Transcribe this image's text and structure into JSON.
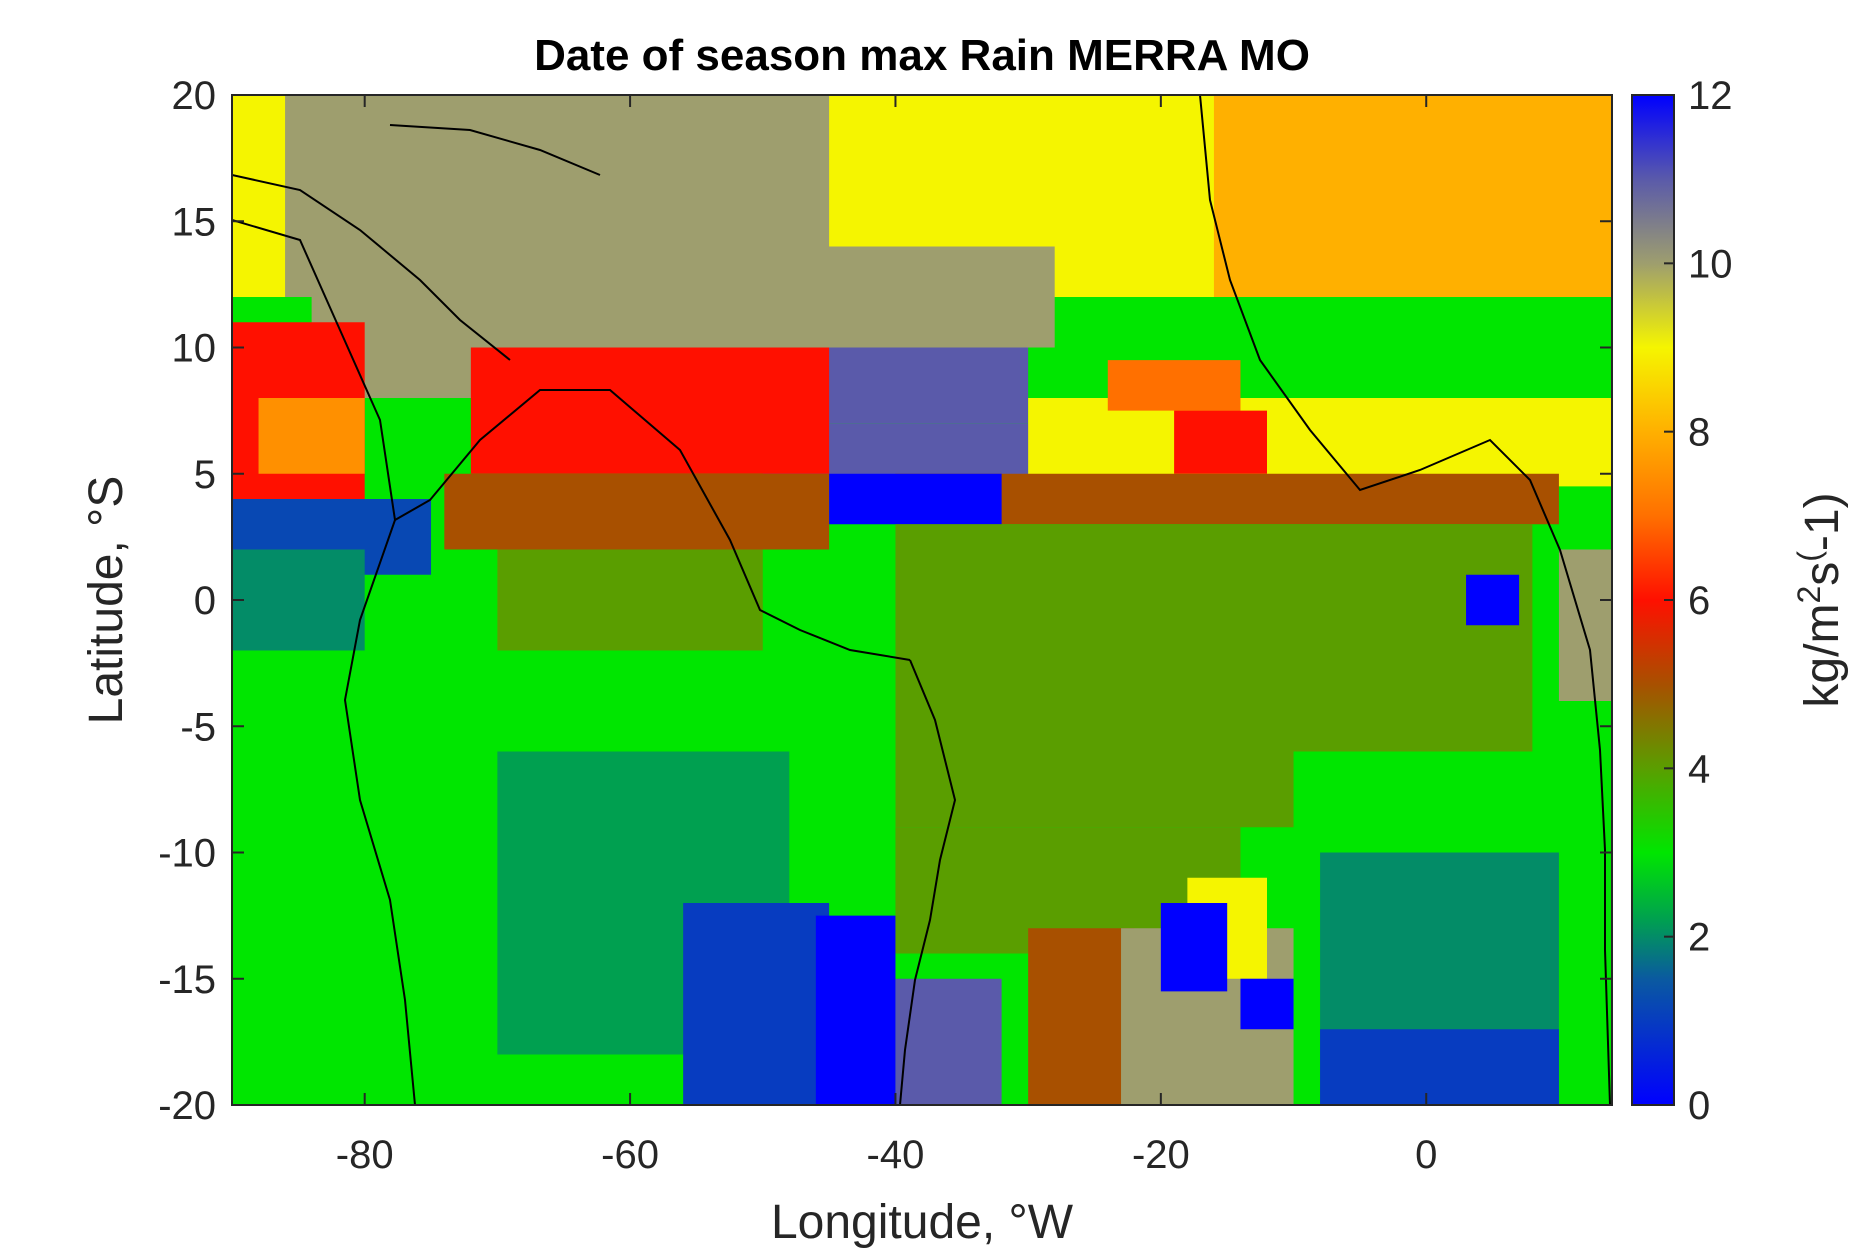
{
  "chart_data": {
    "type": "heatmap",
    "title": "Date of season max Rain MERRA MO",
    "xlabel": "Longitude, °W",
    "ylabel": "Latitude, °S",
    "colorbar_label": "kg/m²s⁽-1)",
    "colorbar_label_parts": [
      "kg/m",
      "2",
      "s",
      "(",
      "-1)"
    ],
    "xlim": [
      -90,
      14
    ],
    "ylim": [
      -20,
      20
    ],
    "clim": [
      0,
      12
    ],
    "x_ticks": [
      -80,
      -60,
      -40,
      -20,
      0
    ],
    "x_tick_labels": [
      "-80",
      "-60",
      "-40",
      "-20",
      "0"
    ],
    "y_ticks": [
      20,
      15,
      10,
      5,
      0,
      -5,
      -10,
      -15,
      -20
    ],
    "y_tick_labels": [
      "20",
      "15",
      "10",
      "5",
      "0",
      "-5",
      "-10",
      "-15",
      "-20"
    ],
    "colorbar_ticks": [
      12,
      10,
      8,
      6,
      4,
      2,
      0
    ],
    "colorbar_tick_labels": [
      "12",
      "10",
      "8",
      "6",
      "4",
      "2",
      "0"
    ],
    "colormap_stops": [
      {
        "value": 0,
        "color": "#0000ff"
      },
      {
        "value": 1.5,
        "color": "#0a5aa0"
      },
      {
        "value": 2.2,
        "color": "#00a050"
      },
      {
        "value": 3,
        "color": "#00e600"
      },
      {
        "value": 4,
        "color": "#5a9e00"
      },
      {
        "value": 5,
        "color": "#a85000"
      },
      {
        "value": 6,
        "color": "#ff1000"
      },
      {
        "value": 7,
        "color": "#ff7000"
      },
      {
        "value": 8,
        "color": "#ffb000"
      },
      {
        "value": 9,
        "color": "#f5f500"
      },
      {
        "value": 10,
        "color": "#9e9e6e"
      },
      {
        "value": 11,
        "color": "#5a5aaa"
      },
      {
        "value": 12,
        "color": "#0000ff"
      }
    ],
    "grid": false,
    "coastlines": true,
    "regions": [
      {
        "value": 8.0,
        "lon": [
          -90,
          14
        ],
        "lat": [
          12,
          20
        ]
      },
      {
        "value": 9.0,
        "lon": [
          -90,
          -16
        ],
        "lat": [
          12,
          20
        ]
      },
      {
        "value": 10.0,
        "lon": [
          -86,
          -45
        ],
        "lat": [
          12,
          20
        ]
      },
      {
        "value": 10.0,
        "lon": [
          -84,
          -50
        ],
        "lat": [
          8,
          12
        ]
      },
      {
        "value": 10.0,
        "lon": [
          -60,
          -28
        ],
        "lat": [
          10,
          14
        ]
      },
      {
        "value": 11.0,
        "lon": [
          -64,
          -30
        ],
        "lat": [
          7,
          10
        ]
      },
      {
        "value": 11.0,
        "lon": [
          -50,
          -20
        ],
        "lat": [
          4,
          7
        ]
      },
      {
        "value": 9.0,
        "lon": [
          -30,
          14
        ],
        "lat": [
          4.5,
          8
        ]
      },
      {
        "value": 7.0,
        "lon": [
          -24,
          -14
        ],
        "lat": [
          7.5,
          9.5
        ]
      },
      {
        "value": 6.0,
        "lon": [
          -19,
          -12
        ],
        "lat": [
          5,
          7.5
        ]
      },
      {
        "value": 6.0,
        "lon": [
          -72,
          -45
        ],
        "lat": [
          5,
          10
        ]
      },
      {
        "value": 6.0,
        "lon": [
          -90,
          -80
        ],
        "lat": [
          4,
          11
        ]
      },
      {
        "value": 7.5,
        "lon": [
          -88,
          -80
        ],
        "lat": [
          5,
          8
        ]
      },
      {
        "value": 5.0,
        "lon": [
          -74,
          -45
        ],
        "lat": [
          2,
          5
        ]
      },
      {
        "value": 5.0,
        "lon": [
          -40,
          10
        ],
        "lat": [
          3,
          5
        ]
      },
      {
        "value": 0.0,
        "lon": [
          -45,
          -32
        ],
        "lat": [
          3,
          5
        ]
      },
      {
        "value": 1.2,
        "lon": [
          -90,
          -75
        ],
        "lat": [
          1,
          4
        ]
      },
      {
        "value": 4.0,
        "lon": [
          -40,
          8
        ],
        "lat": [
          -9,
          3
        ]
      },
      {
        "value": 4.0,
        "lon": [
          -70,
          -50
        ],
        "lat": [
          -2,
          2
        ]
      },
      {
        "value": 2.0,
        "lon": [
          -90,
          -80
        ],
        "lat": [
          -3,
          2
        ]
      },
      {
        "value": 3.0,
        "lon": [
          -90,
          -40
        ],
        "lat": [
          -20,
          -2
        ]
      },
      {
        "value": 2.2,
        "lon": [
          -70,
          -48
        ],
        "lat": [
          -18,
          -6
        ]
      },
      {
        "value": 1.0,
        "lon": [
          -56,
          -45
        ],
        "lat": [
          -20,
          -12
        ]
      },
      {
        "value": 0.0,
        "lon": [
          -46,
          -40
        ],
        "lat": [
          -20,
          -12.5
        ]
      },
      {
        "value": 4.0,
        "lon": [
          -40,
          -14
        ],
        "lat": [
          -14,
          -9
        ]
      },
      {
        "value": 5.0,
        "lon": [
          -30,
          -22
        ],
        "lat": [
          -20,
          -13
        ]
      },
      {
        "value": 11.0,
        "lon": [
          -40,
          -32
        ],
        "lat": [
          -20,
          -15
        ]
      },
      {
        "value": 10.0,
        "lon": [
          -23,
          -10
        ],
        "lat": [
          -20,
          -13
        ]
      },
      {
        "value": 9.0,
        "lon": [
          -18,
          -12
        ],
        "lat": [
          -15,
          -11
        ]
      },
      {
        "value": 0.0,
        "lon": [
          -20,
          -15
        ],
        "lat": [
          -15.5,
          -12
        ]
      },
      {
        "value": 0.0,
        "lon": [
          -14,
          -10
        ],
        "lat": [
          -17,
          -15
        ]
      },
      {
        "value": 3.0,
        "lon": [
          -10,
          14
        ],
        "lat": [
          -10,
          -6
        ]
      },
      {
        "value": 2.0,
        "lon": [
          -8,
          10
        ],
        "lat": [
          -20,
          -10
        ]
      },
      {
        "value": 1.0,
        "lon": [
          -8,
          10
        ],
        "lat": [
          -20,
          -17
        ]
      },
      {
        "value": 0.0,
        "lon": [
          3,
          7
        ],
        "lat": [
          -1,
          1
        ]
      },
      {
        "value": 10.0,
        "lon": [
          10,
          14
        ],
        "lat": [
          -4,
          2
        ]
      }
    ]
  }
}
